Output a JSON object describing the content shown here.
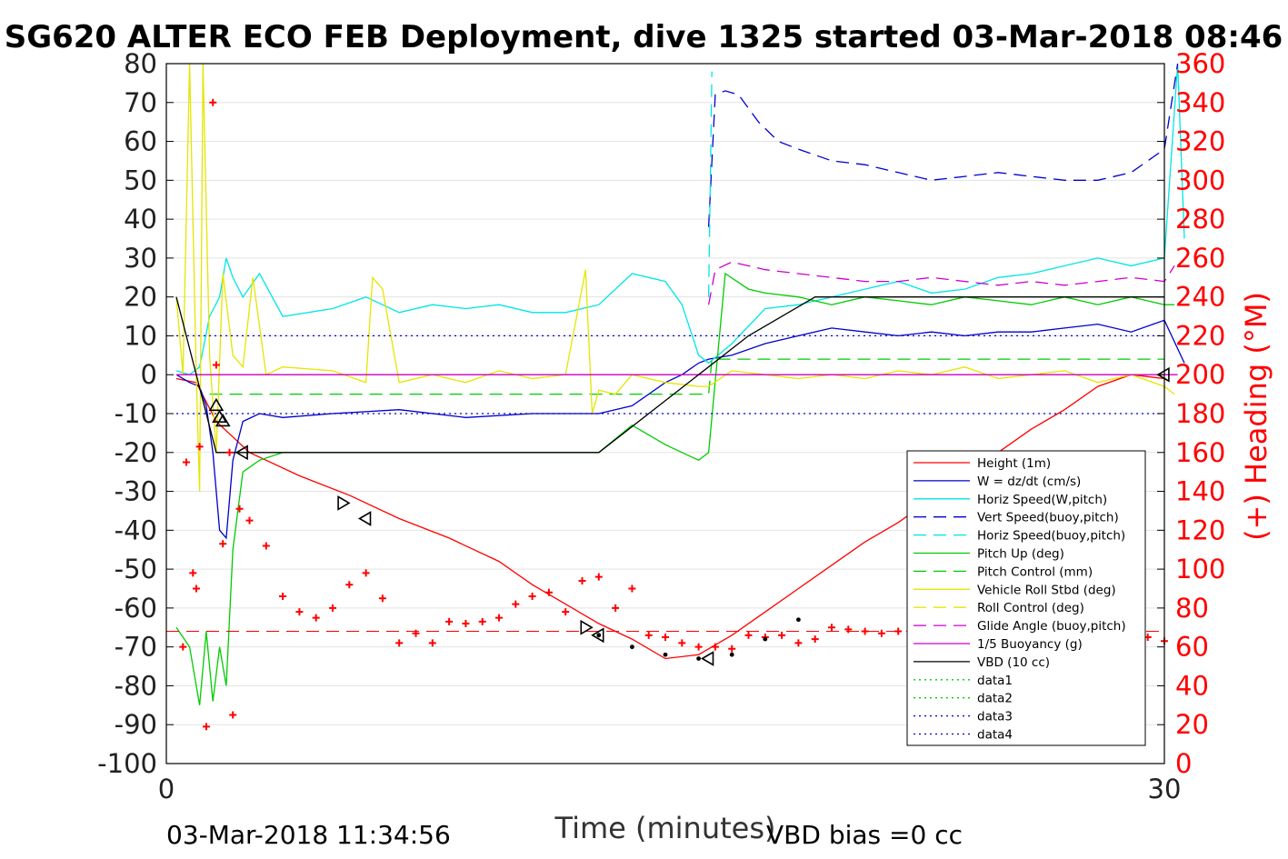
{
  "chart_data": {
    "type": "line",
    "title": "SG620 ALTER ECO FEB Deployment, dive 1325 started 03-Mar-2018 08:46",
    "xlabel": "Time (minutes)",
    "ylabel_right": "(+) Heading (°M)",
    "xlim": [
      0,
      30
    ],
    "ylim": [
      -100,
      80
    ],
    "ylim_right": [
      0,
      360
    ],
    "x_ticks": [
      "0",
      "30"
    ],
    "y_ticks": [
      "80",
      "70",
      "60",
      "50",
      "40",
      "30",
      "20",
      "10",
      "0",
      "-10",
      "-20",
      "-30",
      "-40",
      "-50",
      "-60",
      "-70",
      "-80",
      "-90",
      "-100"
    ],
    "y_right_ticks": [
      "360",
      "340",
      "320",
      "300",
      "280",
      "260",
      "240",
      "220",
      "200",
      "180",
      "160",
      "140",
      "120",
      "100",
      "80",
      "60",
      "40",
      "20",
      "0"
    ],
    "footer_left": "03-Mar-2018 11:34:56",
    "footer_right": "VBD bias =0 cc",
    "legend_position": "lower-right",
    "colors": {
      "height": "#ff0000",
      "w": "#0000cc",
      "horiz": "#00e5e5",
      "vert_buoy": "#0000cc",
      "horiz_buoy": "#00e5e5",
      "pitch": "#00cc00",
      "pitch_ctl": "#00cc00",
      "roll": "#e5e500",
      "roll_ctl": "#e5e500",
      "glide": "#cc00cc",
      "buoy": "#cc00cc",
      "vbd": "#000000",
      "data1": "#00cc00",
      "data2": "#00cc00",
      "data3": "#0000cc",
      "data4": "#0000cc",
      "heading": "#ff0000"
    },
    "series": [
      {
        "name": "Height (1m)",
        "key": "height",
        "style": "solid",
        "x": [
          0.3,
          0.9,
          1.5,
          2.5,
          4.0,
          5.5,
          7.0,
          8.5,
          10.0,
          11.0,
          12.0,
          13.0,
          14.0,
          15.0,
          16.0,
          17.0,
          18.0,
          19.0,
          20.0,
          21.0,
          22.0,
          23.0,
          24.0,
          25.0,
          26.0,
          27.0,
          28.0,
          29.0,
          30.0
        ],
        "y": [
          -1,
          -2,
          -12,
          -20,
          -26,
          -31,
          -37,
          -42,
          -48,
          -54,
          -59,
          -64,
          -68,
          -73,
          -72,
          -67,
          -61,
          -55,
          -49,
          -43,
          -38,
          -32,
          -26,
          -20,
          -14,
          -9,
          -3,
          0,
          -1
        ]
      },
      {
        "name": "W = dz/dt (cm/s)",
        "key": "w",
        "style": "solid",
        "x": [
          0.3,
          0.7,
          1.0,
          1.2,
          1.4,
          1.6,
          1.8,
          2.0,
          2.3,
          2.8,
          3.5,
          5,
          7,
          9,
          11,
          13,
          14,
          15,
          15.5,
          16.0,
          16.3,
          17,
          18,
          19,
          20,
          21,
          22,
          23,
          24,
          25,
          26,
          27,
          28,
          29,
          30,
          30.6
        ],
        "y": [
          0,
          -2,
          -3,
          -8,
          -20,
          -40,
          -42,
          -22,
          -12,
          -10,
          -11,
          -10,
          -9,
          -11,
          -10,
          -10,
          -8,
          -2,
          0,
          3,
          4,
          5,
          8,
          10,
          12,
          11,
          10,
          11,
          10,
          11,
          11,
          12,
          13,
          11,
          14,
          3
        ]
      },
      {
        "name": "Horiz Speed(W,pitch)",
        "key": "horiz",
        "style": "solid",
        "x": [
          0.3,
          0.7,
          1.0,
          1.3,
          1.6,
          1.8,
          2.0,
          2.3,
          2.8,
          3.5,
          5,
          6,
          7,
          8,
          9,
          10,
          11,
          12,
          13,
          14,
          15,
          15.5,
          16,
          16.3,
          17,
          18,
          19,
          20,
          21,
          22,
          23,
          24,
          25,
          26,
          27,
          28,
          29,
          30,
          30.4,
          30.6
        ],
        "y": [
          1,
          0,
          2,
          15,
          20,
          30,
          25,
          20,
          26,
          15,
          17,
          20,
          16,
          18,
          17,
          18,
          16,
          16,
          18,
          26,
          24,
          18,
          5,
          3,
          8,
          17,
          18,
          20,
          22,
          24,
          21,
          22,
          25,
          26,
          28,
          30,
          28,
          30,
          80,
          35
        ]
      },
      {
        "name": "Vert Speed(buoy,pitch)",
        "key": "vert_buoy",
        "style": "dashed",
        "x": [
          16.3,
          16.5,
          16.8,
          17.2,
          17.8,
          18.4,
          19,
          20,
          21,
          22,
          23,
          24,
          25,
          26,
          27,
          28,
          29,
          30,
          30.4
        ],
        "y": [
          38,
          72,
          73,
          72,
          65,
          60,
          58,
          55,
          54,
          52,
          50,
          51,
          52,
          51,
          50,
          50,
          52,
          58,
          80
        ]
      },
      {
        "name": "Horiz Speed(buoy,pitch)",
        "key": "horiz_buoy",
        "style": "dashed",
        "x": [
          16.3,
          16.4
        ],
        "y": [
          20,
          78
        ]
      },
      {
        "name": "Pitch Up (deg)",
        "key": "pitch",
        "style": "solid",
        "x": [
          0.3,
          0.7,
          1.0,
          1.2,
          1.4,
          1.6,
          1.8,
          2.0,
          2.3,
          2.8,
          3.5,
          5,
          7,
          9,
          11,
          12,
          13,
          14,
          15,
          15.5,
          16.0,
          16.3,
          16.8,
          17.5,
          18,
          19,
          20,
          21,
          22,
          23,
          24,
          25,
          26,
          27,
          28,
          29,
          30,
          30.3
        ],
        "y": [
          -65,
          -70,
          -85,
          -66,
          -84,
          -70,
          -80,
          -45,
          -25,
          -22,
          -20,
          -20,
          -20,
          -20,
          -20,
          -20,
          -20,
          -13,
          -18,
          -20,
          -22,
          -20,
          26,
          22,
          21,
          20,
          18,
          20,
          19,
          18,
          20,
          19,
          18,
          20,
          18,
          20,
          18,
          18
        ]
      },
      {
        "name": "Pitch Control (mm)",
        "key": "pitch_ctl",
        "style": "dashed",
        "x": [
          1.3,
          2.0,
          16.3,
          16.4,
          30.0
        ],
        "y": [
          -5,
          -5,
          -5,
          4,
          4
        ]
      },
      {
        "name": "Vehicle Roll Stbd (deg)",
        "key": "roll",
        "style": "solid",
        "x": [
          0.3,
          0.5,
          0.7,
          0.9,
          1.0,
          1.1,
          1.3,
          1.5,
          1.7,
          2.0,
          2.3,
          2.6,
          3.0,
          3.5,
          5,
          6,
          6.2,
          6.5,
          7,
          8,
          9,
          10,
          11,
          12,
          12.6,
          12.8,
          13.0,
          13.5,
          14,
          15,
          16,
          16.3,
          17,
          18,
          19,
          20,
          21,
          22,
          23,
          24,
          25,
          26,
          27,
          28,
          29,
          30,
          30.3
        ],
        "y": [
          20,
          0,
          80,
          0,
          -30,
          80,
          5,
          -20,
          26,
          5,
          2,
          25,
          0,
          2,
          1,
          -2,
          25,
          22,
          -2,
          0,
          -2,
          1,
          -1,
          0,
          27,
          -10,
          -4,
          -5,
          0,
          -2,
          -3,
          -3,
          1,
          0,
          -1,
          0,
          -1,
          1,
          0,
          2,
          -1,
          0,
          1,
          -2,
          0,
          -3,
          -5
        ]
      },
      {
        "name": "Roll Control (deg)",
        "key": "roll_ctl",
        "style": "dashed",
        "x": [
          0.3,
          16.3,
          16.4,
          30.0
        ],
        "y": [
          0,
          0,
          0,
          0
        ]
      },
      {
        "name": "Glide Angle (buoy,pitch)",
        "key": "glide",
        "style": "dashed",
        "x": [
          16.3,
          16.5,
          17,
          18,
          19,
          20,
          21,
          22,
          23,
          24,
          25,
          26,
          27,
          28,
          29,
          30,
          30.3
        ],
        "y": [
          18,
          27,
          29,
          27,
          26,
          25,
          24,
          24,
          25,
          24,
          23,
          24,
          23,
          24,
          25,
          24,
          28
        ]
      },
      {
        "name": "1/5 Buoyancy (g)",
        "key": "buoy",
        "style": "solid",
        "x": [
          0.3,
          30.4
        ],
        "y": [
          0,
          0
        ]
      },
      {
        "name": "VBD (10 cc)",
        "key": "vbd",
        "style": "solid",
        "x": [
          0.3,
          1.5,
          2.0,
          13.0,
          16.0,
          17.5,
          19.5,
          30.0
        ],
        "y": [
          20,
          -20,
          -20,
          -20,
          0,
          10,
          20,
          20
        ]
      },
      {
        "name": "data1",
        "key": "data1",
        "style": "dotted",
        "x": [],
        "y": []
      },
      {
        "name": "data2",
        "key": "data2",
        "style": "dotted",
        "x": [],
        "y": []
      },
      {
        "name": "data3",
        "key": "data3",
        "style": "dotted",
        "x": [
          0.3,
          30.0
        ],
        "y": [
          10,
          10
        ]
      },
      {
        "name": "data4",
        "key": "data4",
        "style": "dotted",
        "x": [
          0.3,
          30.0
        ],
        "y": [
          -10,
          -10
        ]
      }
    ],
    "heading": {
      "name": "Heading (°M)",
      "axis": "right",
      "marker": "+",
      "x": [
        0.5,
        0.6,
        0.8,
        0.9,
        1.0,
        1.2,
        1.4,
        1.5,
        1.7,
        1.9,
        2.0,
        2.2,
        2.5,
        3.0,
        3.5,
        4.0,
        4.5,
        5.0,
        5.5,
        6.0,
        6.5,
        7.0,
        7.5,
        8.0,
        8.5,
        9.0,
        9.5,
        10.0,
        10.5,
        11.0,
        11.5,
        12.0,
        12.5,
        13.0,
        13.5,
        14.0,
        14.5,
        15.0,
        15.5,
        16.0,
        16.5,
        17.0,
        17.5,
        18.0,
        18.5,
        19.0,
        19.5,
        20.0,
        20.5,
        21.0,
        21.5,
        22.0,
        22.5,
        23.0,
        23.5,
        24.0,
        24.5,
        25.0,
        25.5,
        26.0,
        26.5,
        27.0,
        27.5,
        28.0,
        28.5,
        29.0,
        29.5,
        30.0
      ],
      "y": [
        60,
        155,
        98,
        90,
        163,
        19,
        340,
        205,
        113,
        160,
        25,
        131,
        125,
        112,
        86,
        78,
        75,
        80,
        92,
        98,
        85,
        62,
        67,
        62,
        73,
        72,
        73,
        75,
        82,
        86,
        88,
        78,
        94,
        96,
        80,
        90,
        66,
        65,
        62,
        60,
        60,
        59,
        66,
        65,
        66,
        62,
        64,
        70,
        69,
        68,
        67,
        68,
        65,
        67,
        68,
        72,
        66,
        60,
        59,
        65,
        63,
        60,
        62,
        63,
        61,
        60,
        65,
        63
      ]
    },
    "marker_series": [
      {
        "name": "triangle-up markers",
        "symbol": "triangle-up",
        "x": [
          1.5,
          1.6,
          1.7
        ],
        "y": [
          -8,
          -11,
          -12
        ]
      },
      {
        "name": "triangle-left markers",
        "symbol": "triangle-left",
        "x": [
          2.3,
          6.0,
          13.0,
          16.3,
          30.0
        ],
        "y": [
          -20,
          -37,
          -67,
          -73,
          0
        ]
      },
      {
        "name": "triangle-right markers",
        "symbol": "triangle-right",
        "x": [
          5.3,
          12.6
        ],
        "y": [
          -33,
          -65
        ]
      }
    ],
    "reference_line": {
      "name": "target heading",
      "style": "dashed",
      "y_right": 68
    },
    "dots_overlay": {
      "x": [
        13.0,
        14.0,
        15.0,
        16.0,
        17.0,
        18.0,
        19.0
      ],
      "y": [
        -67,
        -70,
        -72,
        -73,
        -72,
        -68,
        -63
      ]
    }
  }
}
